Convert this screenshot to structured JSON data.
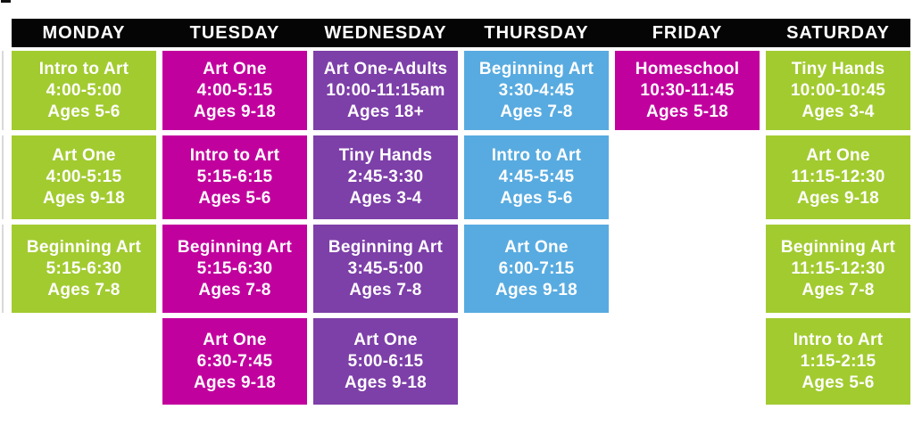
{
  "palette": {
    "header_bg": "#050505",
    "header_text": "#ffffff",
    "card_text": "#ffffff",
    "green": "#a2cb30",
    "magenta": "#c1019e",
    "purple": "#7d3fa8",
    "blue": "#58abe0"
  },
  "days": [
    {
      "label": "MONDAY",
      "color": "green",
      "classes": [
        {
          "name": "Intro to Art",
          "time": "4:00-5:00",
          "ages": "Ages 5-6"
        },
        {
          "name": "Art One",
          "time": "4:00-5:15",
          "ages": "Ages 9-18"
        },
        {
          "name": "Beginning Art",
          "time": "5:15-6:30",
          "ages": "Ages 7-8"
        },
        null
      ]
    },
    {
      "label": "TUESDAY",
      "color": "magenta",
      "classes": [
        {
          "name": "Art One",
          "time": "4:00-5:15",
          "ages": "Ages 9-18"
        },
        {
          "name": "Intro to Art",
          "time": "5:15-6:15",
          "ages": "Ages 5-6"
        },
        {
          "name": "Beginning Art",
          "time": "5:15-6:30",
          "ages": "Ages 7-8"
        },
        {
          "name": "Art One",
          "time": "6:30-7:45",
          "ages": "Ages 9-18"
        }
      ]
    },
    {
      "label": "WEDNESDAY",
      "color": "purple",
      "classes": [
        {
          "name": "Art One-Adults",
          "time": "10:00-11:15am",
          "ages": "Ages 18+"
        },
        {
          "name": "Tiny Hands",
          "time": "2:45-3:30",
          "ages": "Ages 3-4"
        },
        {
          "name": "Beginning Art",
          "time": "3:45-5:00",
          "ages": "Ages 7-8"
        },
        {
          "name": "Art One",
          "time": "5:00-6:15",
          "ages": "Ages 9-18"
        }
      ]
    },
    {
      "label": "THURSDAY",
      "color": "blue",
      "classes": [
        {
          "name": "Beginning Art",
          "time": "3:30-4:45",
          "ages": "Ages 7-8"
        },
        {
          "name": "Intro to Art",
          "time": "4:45-5:45",
          "ages": "Ages 5-6"
        },
        {
          "name": "Art One",
          "time": "6:00-7:15",
          "ages": "Ages 9-18"
        },
        null
      ]
    },
    {
      "label": "FRIDAY",
      "color": "magenta",
      "classes": [
        {
          "name": "Homeschool",
          "time": "10:30-11:45",
          "ages": "Ages 5-18"
        },
        null,
        null,
        null
      ]
    },
    {
      "label": "SATURDAY",
      "color": "green",
      "classes": [
        {
          "name": "Tiny Hands",
          "time": "10:00-10:45",
          "ages": "Ages 3-4"
        },
        {
          "name": "Art One",
          "time": "11:15-12:30",
          "ages": "Ages 9-18"
        },
        {
          "name": "Beginning Art",
          "time": "11:15-12:30",
          "ages": "Ages 7-8"
        },
        {
          "name": "Intro to Art",
          "time": "1:15-2:15",
          "ages": "Ages 5-6"
        }
      ]
    }
  ]
}
